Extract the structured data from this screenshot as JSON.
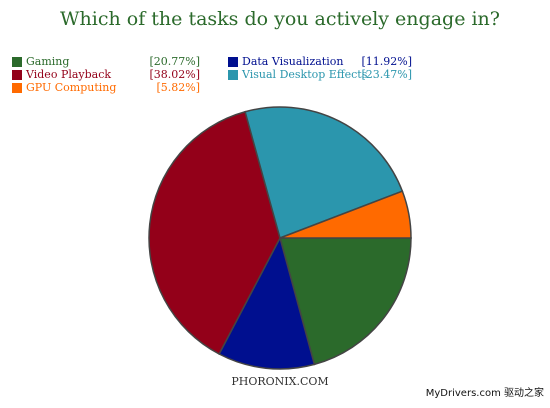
{
  "chart_data": {
    "type": "pie",
    "title": "Which of the tasks do you actively engage in?",
    "categories": [
      "Gaming",
      "Video Playback",
      "GPU Computing",
      "Data Visualization",
      "Visual Desktop Effects"
    ],
    "values": [
      20.77,
      38.02,
      5.82,
      11.92,
      23.47
    ],
    "value_labels": [
      "[20.77%]",
      "[38.02%]",
      "[5.82%]",
      "[11.92%]",
      "[23.47%]"
    ],
    "colors": [
      "#2b6a2b",
      "#930019",
      "#ff6a00",
      "#000f8f",
      "#2b96ad"
    ],
    "source": "PHORONIX.COM",
    "watermark": "MyDrivers.com 驱动之家"
  }
}
